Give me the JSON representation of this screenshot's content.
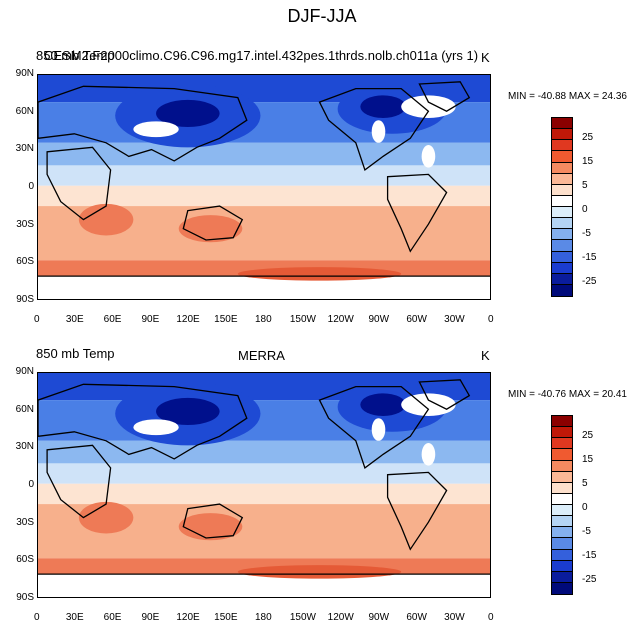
{
  "page_title": "DJF-JJA",
  "panels": [
    {
      "left_title": "850 mb Temp",
      "center_title": "CESM2.F2000climo.C96.C96.mg17.intel.432pes.1thrds.nolb.ch011a (yrs 1)",
      "right_title": "K",
      "stats": "MIN = -40.88 MAX =  24.36"
    },
    {
      "left_title": "850 mb Temp",
      "center_title": "MERRA",
      "right_title": "K",
      "stats": "MIN = -40.76 MAX =  20.41"
    }
  ],
  "axes": {
    "lat_labels": [
      "90N",
      "60N",
      "30N",
      "0",
      "30S",
      "60S",
      "90S"
    ],
    "lon_labels": [
      "0",
      "30E",
      "60E",
      "90E",
      "120E",
      "150E",
      "180",
      "150W",
      "120W",
      "90W",
      "60W",
      "30W",
      "0"
    ]
  },
  "colorbar": {
    "labels": [
      "25",
      "15",
      "5",
      "0",
      "-5",
      "-15",
      "-25"
    ],
    "colors": [
      "#8b0000",
      "#c01808",
      "#e03820",
      "#f05a30",
      "#f58a60",
      "#fbb896",
      "#fde0cc",
      "#ffffff",
      "#dceefa",
      "#b4d4f4",
      "#84b0ee",
      "#5a8ae6",
      "#3460dc",
      "#1a3cd0",
      "#0a1c9c",
      "#000a7a"
    ]
  },
  "colors": {
    "very_cold": "#00108c",
    "cold": "#1e4ad4",
    "cool": "#4a7fe6",
    "mild": "#8cb8f0",
    "pale_blue": "#cfe3f8",
    "pale_warm": "#fde4d2",
    "warm": "#f7b08c",
    "hot": "#ee7a56",
    "hotter": "#e55a36",
    "missing": "#ffffff",
    "coast": "#000000"
  },
  "chart_data": [
    {
      "type": "heatmap",
      "title": "CESM2.F2000climo.C96.C96.mg17.intel.432pes.1thrds.nolb.ch011a (yrs 1)",
      "variable": "850 mb Temp",
      "units": "K",
      "min": -40.88,
      "max": 24.36,
      "xlim": [
        0,
        360
      ],
      "ylim": [
        -90,
        90
      ],
      "contour_levels": [
        -35,
        -30,
        -25,
        -20,
        -15,
        -10,
        -5,
        -2,
        0,
        2,
        5,
        10,
        15,
        20,
        25
      ]
    },
    {
      "type": "heatmap",
      "title": "MERRA",
      "variable": "850 mb Temp",
      "units": "K",
      "min": -40.76,
      "max": 20.41,
      "xlim": [
        0,
        360
      ],
      "ylim": [
        -90,
        90
      ],
      "contour_levels": [
        -35,
        -30,
        -25,
        -20,
        -15,
        -10,
        -5,
        -2,
        0,
        2,
        5,
        10,
        15,
        20,
        25
      ]
    }
  ]
}
